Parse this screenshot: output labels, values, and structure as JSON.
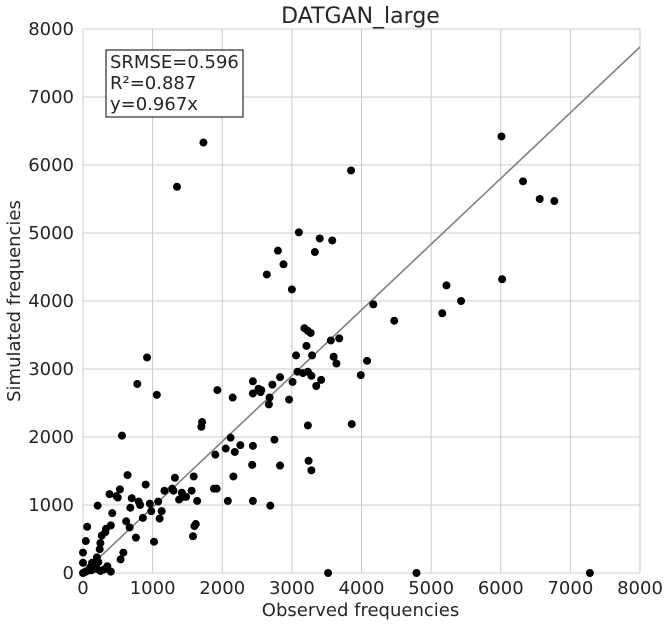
{
  "chart_data": {
    "type": "scatter",
    "title": "DATGAN_large",
    "xlabel": "Observed frequencies",
    "ylabel": "Simulated frequencies",
    "xlim": [
      0,
      8000
    ],
    "ylim": [
      0,
      8000
    ],
    "xticks": [
      0,
      1000,
      2000,
      3000,
      4000,
      5000,
      6000,
      7000,
      8000
    ],
    "yticks": [
      0,
      1000,
      2000,
      3000,
      4000,
      5000,
      6000,
      7000,
      8000
    ],
    "grid": true,
    "annotation": [
      "SRMSE=0.596",
      "R²=0.887",
      "y=0.967x"
    ],
    "fit_line": {
      "slope": 0.967,
      "color": "#808080"
    },
    "point_color": "#000000",
    "points": [
      [
        0,
        0
      ],
      [
        20,
        10
      ],
      [
        40,
        20
      ],
      [
        60,
        30
      ],
      [
        80,
        50
      ],
      [
        100,
        80
      ],
      [
        120,
        40
      ],
      [
        150,
        100
      ],
      [
        180,
        120
      ],
      [
        200,
        60
      ],
      [
        220,
        160
      ],
      [
        250,
        30
      ],
      [
        300,
        50
      ],
      [
        350,
        100
      ],
      [
        400,
        20
      ],
      [
        0,
        300
      ],
      [
        0,
        150
      ],
      [
        40,
        470
      ],
      [
        60,
        680
      ],
      [
        130,
        150
      ],
      [
        200,
        230
      ],
      [
        210,
        990
      ],
      [
        240,
        350
      ],
      [
        250,
        440
      ],
      [
        270,
        550
      ],
      [
        320,
        600
      ],
      [
        330,
        650
      ],
      [
        380,
        1160
      ],
      [
        400,
        700
      ],
      [
        420,
        880
      ],
      [
        480,
        1130
      ],
      [
        500,
        1110
      ],
      [
        530,
        1230
      ],
      [
        540,
        200
      ],
      [
        560,
        2020
      ],
      [
        580,
        300
      ],
      [
        620,
        760
      ],
      [
        640,
        1440
      ],
      [
        670,
        670
      ],
      [
        680,
        960
      ],
      [
        700,
        1100
      ],
      [
        760,
        520
      ],
      [
        780,
        2780
      ],
      [
        800,
        1050
      ],
      [
        820,
        1000
      ],
      [
        860,
        810
      ],
      [
        900,
        1300
      ],
      [
        920,
        3170
      ],
      [
        960,
        1020
      ],
      [
        980,
        910
      ],
      [
        1020,
        460
      ],
      [
        1060,
        2620
      ],
      [
        1080,
        1050
      ],
      [
        1100,
        800
      ],
      [
        1130,
        910
      ],
      [
        1170,
        1210
      ],
      [
        1280,
        1240
      ],
      [
        1300,
        1210
      ],
      [
        1320,
        1400
      ],
      [
        1350,
        5680
      ],
      [
        1380,
        1080
      ],
      [
        1420,
        1180
      ],
      [
        1450,
        1120
      ],
      [
        1480,
        1120
      ],
      [
        1560,
        1210
      ],
      [
        1580,
        540
      ],
      [
        1600,
        690
      ],
      [
        1620,
        720
      ],
      [
        1590,
        1420
      ],
      [
        1640,
        1060
      ],
      [
        1700,
        2150
      ],
      [
        1710,
        2220
      ],
      [
        1730,
        6330
      ],
      [
        1880,
        1240
      ],
      [
        1900,
        1740
      ],
      [
        1920,
        1240
      ],
      [
        1930,
        2690
      ],
      [
        2050,
        1830
      ],
      [
        2080,
        1060
      ],
      [
        2120,
        1990
      ],
      [
        2150,
        2580
      ],
      [
        2160,
        1420
      ],
      [
        2180,
        1780
      ],
      [
        2260,
        1880
      ],
      [
        2430,
        1590
      ],
      [
        2440,
        2640
      ],
      [
        2440,
        2820
      ],
      [
        2440,
        1870
      ],
      [
        2440,
        1060
      ],
      [
        2520,
        2710
      ],
      [
        2550,
        2660
      ],
      [
        2560,
        2690
      ],
      [
        2640,
        4390
      ],
      [
        2670,
        2480
      ],
      [
        2680,
        2580
      ],
      [
        2690,
        990
      ],
      [
        2720,
        2770
      ],
      [
        2750,
        1960
      ],
      [
        2800,
        4740
      ],
      [
        2830,
        1580
      ],
      [
        2830,
        2880
      ],
      [
        2880,
        4540
      ],
      [
        2960,
        2550
      ],
      [
        3000,
        4170
      ],
      [
        3010,
        2810
      ],
      [
        3060,
        3200
      ],
      [
        3080,
        2960
      ],
      [
        3100,
        5010
      ],
      [
        3160,
        2940
      ],
      [
        3180,
        3600
      ],
      [
        3210,
        3340
      ],
      [
        3230,
        2960
      ],
      [
        3230,
        3560
      ],
      [
        3230,
        2170
      ],
      [
        3240,
        1650
      ],
      [
        3270,
        3530
      ],
      [
        3290,
        3200
      ],
      [
        3280,
        2900
      ],
      [
        3280,
        1510
      ],
      [
        3330,
        4720
      ],
      [
        3350,
        2750
      ],
      [
        3400,
        4920
      ],
      [
        3420,
        2840
      ],
      [
        3520,
        0
      ],
      [
        3560,
        3420
      ],
      [
        3580,
        4890
      ],
      [
        3600,
        3180
      ],
      [
        3640,
        3080
      ],
      [
        3680,
        3450
      ],
      [
        3850,
        5920
      ],
      [
        3860,
        2190
      ],
      [
        3990,
        2910
      ],
      [
        4080,
        3120
      ],
      [
        4170,
        3950
      ],
      [
        4470,
        3710
      ],
      [
        4790,
        0
      ],
      [
        5160,
        3820
      ],
      [
        5220,
        4230
      ],
      [
        5430,
        4000
      ],
      [
        6010,
        6420
      ],
      [
        6020,
        4320
      ],
      [
        6320,
        5760
      ],
      [
        6560,
        5500
      ],
      [
        6770,
        5470
      ],
      [
        7280,
        0
      ]
    ]
  }
}
